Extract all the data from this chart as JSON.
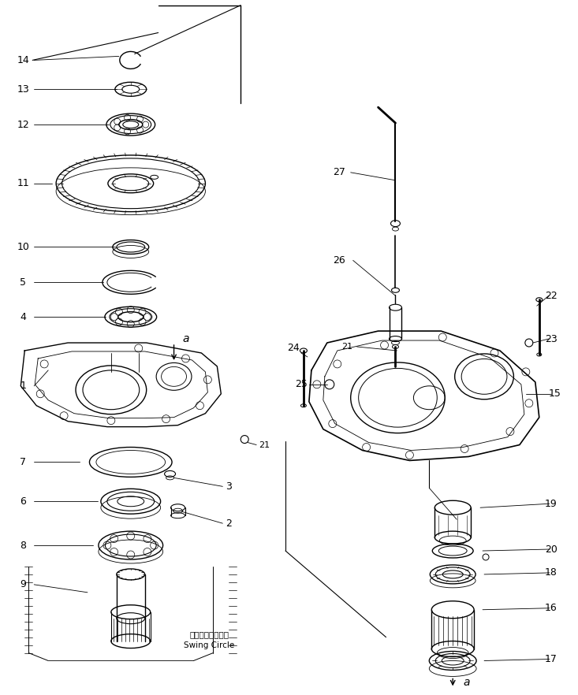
{
  "bg_color": "#ffffff",
  "line_color": "#000000",
  "fig_width": 7.33,
  "fig_height": 8.82,
  "swing_circle_ja": "スイングサークル",
  "swing_circle_en": "Swing Circle"
}
